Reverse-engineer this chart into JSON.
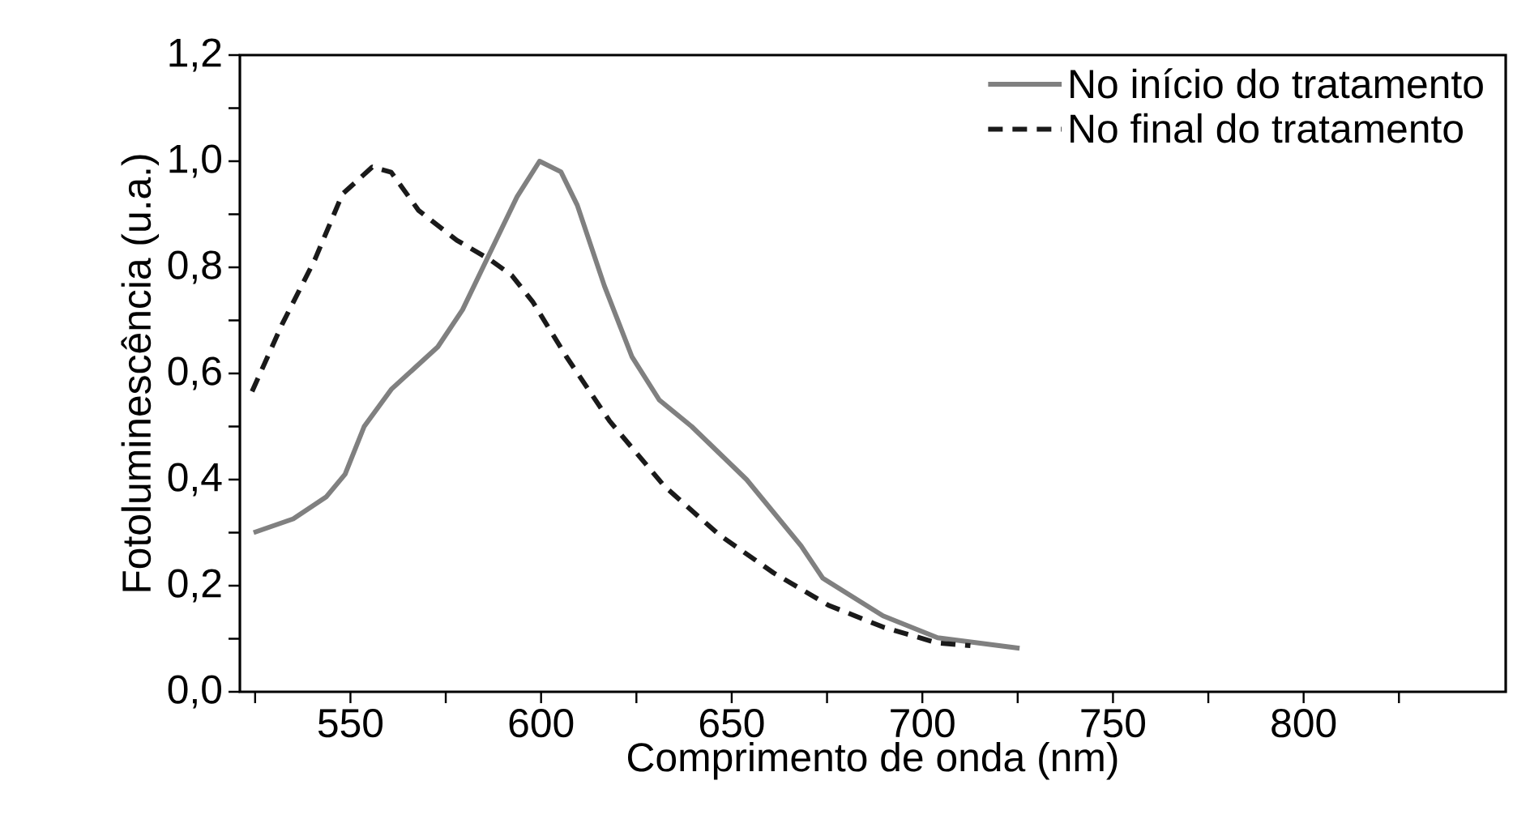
{
  "chart_data": {
    "type": "line",
    "xlabel": "Comprimento de onda (nm)",
    "ylabel": "Fotoluminescência (u.a.)",
    "xlim": [
      521,
      853
    ],
    "ylim": [
      0,
      1.2
    ],
    "xticks": [
      {
        "value": 525,
        "label": null
      },
      550,
      {
        "value": 575,
        "label": null
      },
      600,
      {
        "value": 625,
        "label": null
      },
      650,
      {
        "value": 675,
        "label": null
      },
      700,
      {
        "value": 725,
        "label": null
      },
      750,
      {
        "value": 775,
        "label": null
      },
      800,
      {
        "value": 825,
        "label": null
      }
    ],
    "yticks": [
      {
        "value": 0,
        "label": "0,0"
      },
      {
        "value": 0.1,
        "label": null
      },
      {
        "value": 0.2,
        "label": "0,2"
      },
      {
        "value": 0.3,
        "label": null
      },
      {
        "value": 0.4,
        "label": "0,4"
      },
      {
        "value": 0.5,
        "label": null
      },
      {
        "value": 0.6,
        "label": "0,6"
      },
      {
        "value": 0.7,
        "label": null
      },
      {
        "value": 0.8,
        "label": "0,8"
      },
      {
        "value": 0.9,
        "label": null
      },
      {
        "value": 1.0,
        "label": "1,0"
      },
      {
        "value": 1.1,
        "label": null
      },
      {
        "value": 1.2,
        "label": "1,2"
      }
    ],
    "legend": "top right",
    "grid": false,
    "marker": "none",
    "series": [
      {
        "name": "No início do tratamento",
        "color": "#808080",
        "line_style": "solid",
        "x": [
          524.6,
          535,
          543.6,
          548.6,
          553.6,
          560.7,
          572.9,
          579.4,
          586.5,
          593.7,
          599.6,
          605.2,
          609.5,
          616.6,
          623.8,
          631,
          639.5,
          653.9,
          668.2,
          673.9,
          689.7,
          704,
          725.5
        ],
        "values": [
          0.3,
          0.326,
          0.367,
          0.41,
          0.5,
          0.57,
          0.65,
          0.72,
          0.826,
          0.933,
          1.0,
          0.98,
          0.917,
          0.765,
          0.632,
          0.55,
          0.5,
          0.4,
          0.275,
          0.214,
          0.143,
          0.102,
          0.082
        ]
      },
      {
        "name": "No final do tratamento",
        "color": "#1a1a1a",
        "line_style": "dashed",
        "x": [
          524.2,
          532.1,
          540.7,
          547.9,
          555.7,
          560.7,
          567.9,
          577.9,
          586.5,
          592.3,
          597.9,
          606.6,
          618,
          632.4,
          646.7,
          661,
          675.4,
          689.7,
          704,
          712.6
        ],
        "values": [
          0.566,
          0.693,
          0.815,
          0.938,
          0.989,
          0.979,
          0.907,
          0.851,
          0.815,
          0.785,
          0.734,
          0.632,
          0.51,
          0.387,
          0.296,
          0.224,
          0.163,
          0.122,
          0.092,
          0.087
        ]
      }
    ]
  }
}
